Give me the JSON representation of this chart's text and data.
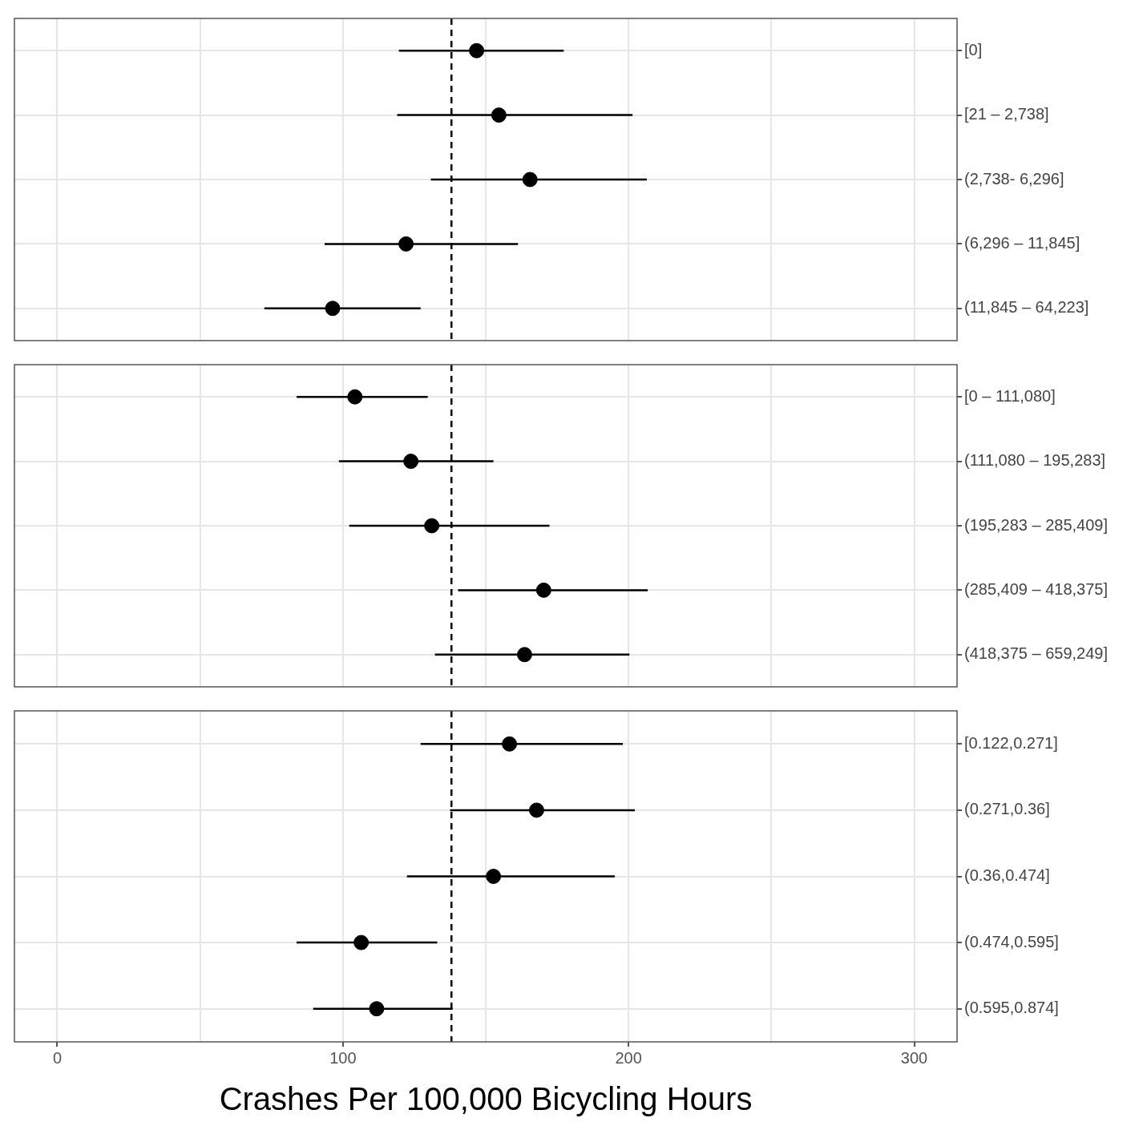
{
  "chart_data": [
    {
      "type": "scatter",
      "orientation": "horizontal",
      "categories": [
        "[0]",
        "[21 – 2,738]",
        "(2,738- 6,296]",
        "(6,296 – 11,845]",
        "(11,845 – 64,223]"
      ],
      "series": [
        {
          "color": "#000000",
          "values": [
            146.8,
            154.6,
            165.5,
            122.1,
            96.4
          ],
          "errors": [
            [
              119.6,
              177.3
            ],
            [
              119,
              201.4
            ],
            [
              130.8,
              206.4
            ],
            [
              93.6,
              161.3
            ],
            [
              72.5,
              127.2
            ]
          ]
        }
      ],
      "xlim": [
        -15,
        315
      ],
      "xticks": [
        0,
        {
          "value": 50,
          "label": null
        },
        100,
        {
          "value": 150,
          "label": null
        },
        200,
        {
          "value": 250,
          "label": null
        },
        300
      ],
      "tick_labels": "y",
      "grid": true,
      "legend": false,
      "marker": "circle",
      "ref_lines": [
        {
          "axis": "x",
          "value": 138,
          "color": "#000000",
          "line_style": "dashed"
        }
      ]
    },
    {
      "type": "scatter",
      "orientation": "horizontal",
      "categories": [
        "[0 – 111,080]",
        "(111,080 – 195,283]",
        "(195,283 – 285,409]",
        "(285,409 – 418,375]",
        "(418,375 – 659,249]"
      ],
      "series": [
        {
          "color": "#000000",
          "values": [
            104.2,
            123.8,
            131.1,
            170.3,
            163.6
          ],
          "errors": [
            [
              83.8,
              129.7
            ],
            [
              98.6,
              152.7
            ],
            [
              102.2,
              172.3
            ],
            [
              140.3,
              206.7
            ],
            [
              132.2,
              200.3
            ]
          ]
        }
      ],
      "xlim": [
        -15,
        315
      ],
      "xticks": [
        0,
        {
          "value": 50,
          "label": null
        },
        100,
        {
          "value": 150,
          "label": null
        },
        200,
        {
          "value": 250,
          "label": null
        },
        300
      ],
      "tick_labels": "y",
      "grid": true,
      "legend": false,
      "marker": "circle",
      "ref_lines": [
        {
          "axis": "x",
          "value": 138,
          "color": "#000000",
          "line_style": "dashed"
        }
      ]
    },
    {
      "type": "scatter",
      "orientation": "horizontal",
      "categories": [
        "[0.122,0.271]",
        "(0.271,0.36]",
        "(0.36,0.474]",
        "(0.474,0.595]",
        "(0.595,0.874]"
      ],
      "series": [
        {
          "color": "#000000",
          "values": [
            158.3,
            167.8,
            152.7,
            106.4,
            111.8
          ],
          "errors": [
            [
              127.2,
              198
            ],
            [
              137.5,
              202.2
            ],
            [
              122.4,
              195.2
            ],
            [
              83.8,
              133
            ],
            [
              89.6,
              138.4
            ]
          ]
        }
      ],
      "xlim": [
        -15,
        315
      ],
      "xticks": [
        0,
        {
          "value": 50,
          "label": null
        },
        100,
        {
          "value": 150,
          "label": null
        },
        200,
        {
          "value": 250,
          "label": null
        },
        300
      ],
      "xlabel": "Crashes Per 100,000 Bicycling Hours",
      "grid": true,
      "legend": false,
      "marker": "circle",
      "ref_lines": [
        {
          "axis": "x",
          "value": 138,
          "color": "#000000",
          "line_style": "dashed"
        }
      ]
    }
  ]
}
